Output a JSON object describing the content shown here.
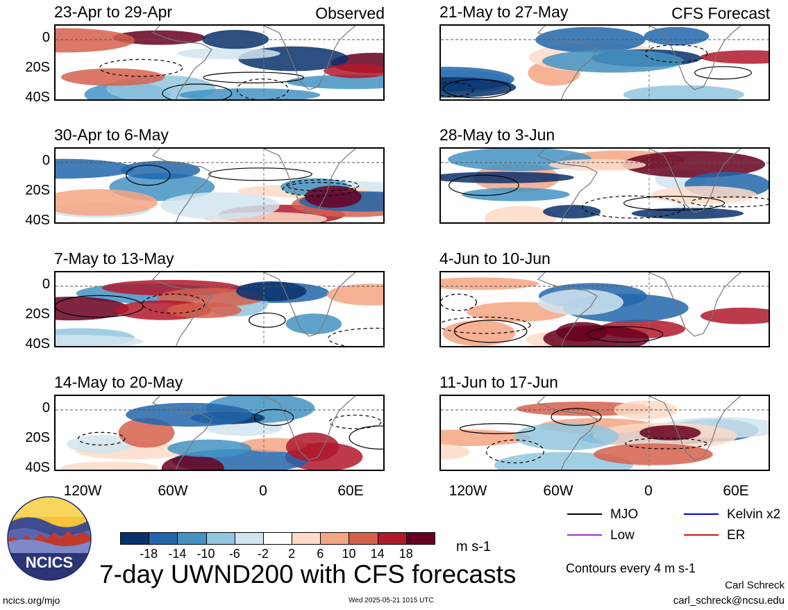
{
  "labels": {
    "observed": "Observed",
    "forecast": "CFS Forecast",
    "main_title": "7-day UWND200 with CFS forecasts",
    "units": "m s-1",
    "contour_note": "Contours every 4 m s-1",
    "logo_text": "NCICS",
    "website": "ncics.org/mjo",
    "timestamp": "Wed 2025-05-21 1015 UTC",
    "author": "Carl Schreck",
    "email": "carl_schreck@ncsu.edu"
  },
  "axes": {
    "y_ticks": [
      "0",
      "20S",
      "40S"
    ],
    "x_ticks": [
      "120W",
      "60W",
      "0",
      "60E"
    ]
  },
  "panels": [
    {
      "title": "23-Apr to 29-Apr",
      "tag": "Observed"
    },
    {
      "title": "21-May to 27-May",
      "tag": "CFS Forecast"
    },
    {
      "title": "30-Apr to 6-May",
      "tag": ""
    },
    {
      "title": "28-May to 3-Jun",
      "tag": ""
    },
    {
      "title": "7-May to 13-May",
      "tag": ""
    },
    {
      "title": "4-Jun to 10-Jun",
      "tag": ""
    },
    {
      "title": "14-May to 20-May",
      "tag": ""
    },
    {
      "title": "11-Jun to 17-Jun",
      "tag": ""
    }
  ],
  "colorbar": {
    "labels": [
      "-18",
      "-14",
      "-10",
      "-6",
      "-2",
      "2",
      "6",
      "10",
      "14",
      "18"
    ],
    "colors": [
      "#08306b",
      "#2166ac",
      "#4393c3",
      "#92c5de",
      "#d1e5f0",
      "#ffffff",
      "#fddbc7",
      "#f4a582",
      "#d6604d",
      "#b2182b",
      "#67001f"
    ]
  },
  "legend": [
    {
      "label": "MJO",
      "color": "#000000"
    },
    {
      "label": "Kelvin x2",
      "color": "#0000dd"
    },
    {
      "label": "Low",
      "color": "#9933cc"
    },
    {
      "label": "ER",
      "color": "#cc1111"
    }
  ]
}
